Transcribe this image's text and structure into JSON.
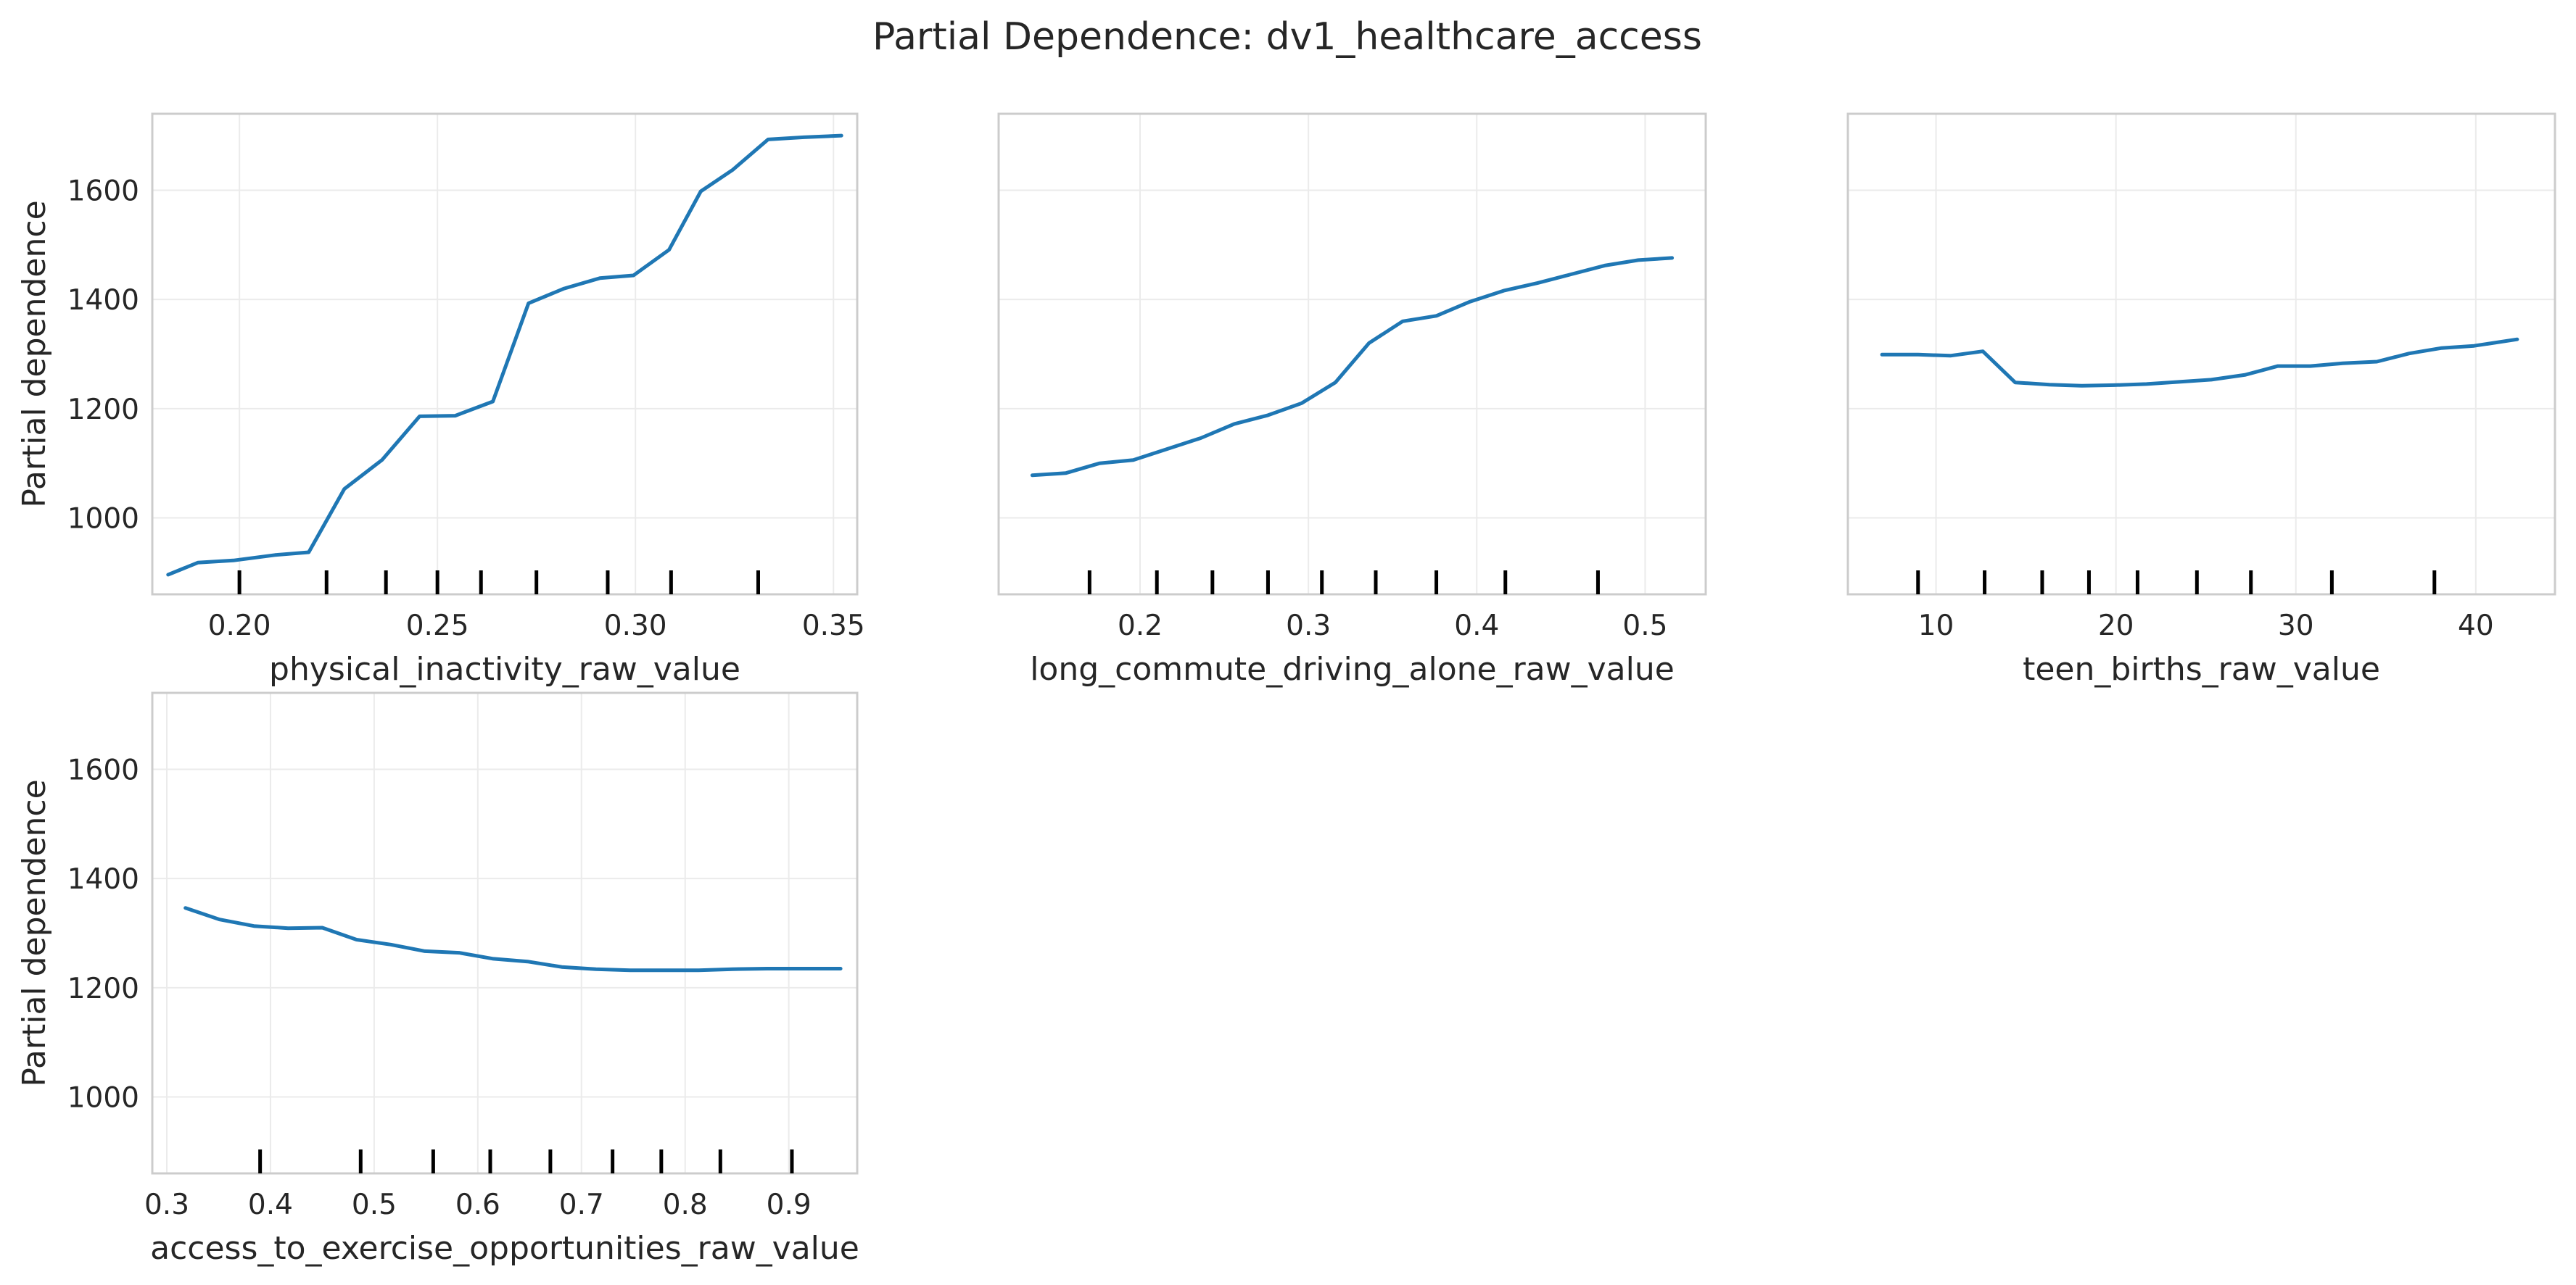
{
  "figure": {
    "title": "Partial Dependence: dv1_healthcare_access"
  },
  "chart_data": [
    {
      "type": "line",
      "title": "",
      "xlabel": "physical_inactivity_raw_value",
      "ylabel": "Partial dependence",
      "xlim": [
        0.178,
        0.356
      ],
      "ylim": [
        860,
        1740
      ],
      "xticks": [
        0.2,
        0.25,
        0.3,
        0.35
      ],
      "xtick_labels": [
        "0.20",
        "0.25",
        "0.30",
        "0.35"
      ],
      "yticks": [
        1000,
        1200,
        1400,
        1600
      ],
      "ytick_labels": [
        "1000",
        "1200",
        "1400",
        "1600"
      ],
      "grid": true,
      "show_ylabel": true,
      "show_ytick_labels": true,
      "x": [
        0.182,
        0.1895,
        0.1985,
        0.209,
        0.2175,
        0.2265,
        0.236,
        0.2455,
        0.2545,
        0.264,
        0.273,
        0.282,
        0.291,
        0.2995,
        0.3085,
        0.3165,
        0.3245,
        0.3335,
        0.3425,
        0.352
      ],
      "y": [
        896,
        918,
        922,
        932,
        937,
        1053,
        1106,
        1186,
        1187,
        1213,
        1393,
        1420,
        1439,
        1444,
        1491,
        1598,
        1637,
        1693,
        1697,
        1700
      ],
      "deciles": [
        0.2,
        0.222,
        0.237,
        0.25,
        0.261,
        0.275,
        0.293,
        0.309,
        0.331
      ]
    },
    {
      "type": "line",
      "title": "",
      "xlabel": "long_commute_driving_alone_raw_value",
      "ylabel": "",
      "xlim": [
        0.116,
        0.536
      ],
      "ylim": [
        860,
        1740
      ],
      "xticks": [
        0.2,
        0.3,
        0.4,
        0.5
      ],
      "xtick_labels": [
        "0.2",
        "0.3",
        "0.4",
        "0.5"
      ],
      "yticks": [
        1000,
        1200,
        1400,
        1600
      ],
      "ytick_labels": [
        "1000",
        "1200",
        "1400",
        "1600"
      ],
      "grid": true,
      "show_ylabel": false,
      "show_ytick_labels": false,
      "x": [
        0.136,
        0.156,
        0.176,
        0.196,
        0.216,
        0.236,
        0.256,
        0.276,
        0.296,
        0.316,
        0.336,
        0.356,
        0.376,
        0.396,
        0.416,
        0.436,
        0.456,
        0.476,
        0.496,
        0.516
      ],
      "y": [
        1078,
        1082,
        1100,
        1106,
        1126,
        1146,
        1172,
        1188,
        1210,
        1248,
        1320,
        1360,
        1370,
        1396,
        1416,
        1430,
        1446,
        1462,
        1472,
        1476
      ],
      "deciles": [
        0.17,
        0.21,
        0.243,
        0.276,
        0.308,
        0.34,
        0.376,
        0.417,
        0.472
      ]
    },
    {
      "type": "line",
      "title": "",
      "xlabel": "teen_births_raw_value",
      "ylabel": "",
      "xlim": [
        5.1,
        44.4
      ],
      "ylim": [
        860,
        1740
      ],
      "xticks": [
        10,
        20,
        30,
        40
      ],
      "xtick_labels": [
        "10",
        "20",
        "30",
        "40"
      ],
      "yticks": [
        1000,
        1200,
        1400,
        1600
      ],
      "ytick_labels": [
        "1000",
        "1200",
        "1400",
        "1600"
      ],
      "grid": true,
      "show_ylabel": false,
      "show_ytick_labels": false,
      "x": [
        7.0,
        9.0,
        10.8,
        12.6,
        14.4,
        16.3,
        18.1,
        19.9,
        21.7,
        23.5,
        25.3,
        27.2,
        29.0,
        30.8,
        32.6,
        34.5,
        36.3,
        38.1,
        39.9,
        42.3
      ],
      "y": [
        1299,
        1299,
        1297,
        1305,
        1248,
        1244,
        1242,
        1243,
        1245,
        1249,
        1253,
        1262,
        1278,
        1278,
        1283,
        1286,
        1301,
        1311,
        1315,
        1327
      ],
      "deciles": [
        9.0,
        12.7,
        15.9,
        18.5,
        21.2,
        24.5,
        27.5,
        32.0,
        37.7
      ]
    },
    {
      "type": "line",
      "title": "",
      "xlabel": "access_to_exercise_opportunities_raw_value",
      "ylabel": "Partial dependence",
      "xlim": [
        0.286,
        0.966
      ],
      "ylim": [
        860,
        1740
      ],
      "xticks": [
        0.3,
        0.4,
        0.5,
        0.6,
        0.7,
        0.8,
        0.9
      ],
      "xtick_labels": [
        "0.3",
        "0.4",
        "0.5",
        "0.6",
        "0.7",
        "0.8",
        "0.9"
      ],
      "yticks": [
        1000,
        1200,
        1400,
        1600
      ],
      "ytick_labels": [
        "1000",
        "1200",
        "1400",
        "1600"
      ],
      "grid": true,
      "show_ylabel": true,
      "show_ytick_labels": true,
      "x": [
        0.318,
        0.351,
        0.384,
        0.417,
        0.45,
        0.483,
        0.516,
        0.549,
        0.582,
        0.615,
        0.648,
        0.681,
        0.714,
        0.747,
        0.78,
        0.813,
        0.846,
        0.879,
        0.912,
        0.95
      ],
      "y": [
        1346,
        1325,
        1313,
        1309,
        1310,
        1288,
        1279,
        1267,
        1264,
        1253,
        1248,
        1238,
        1234,
        1232,
        1232,
        1232,
        1234,
        1235,
        1235,
        1235
      ],
      "deciles": [
        0.39,
        0.487,
        0.557,
        0.612,
        0.67,
        0.73,
        0.777,
        0.834,
        0.903
      ]
    }
  ]
}
